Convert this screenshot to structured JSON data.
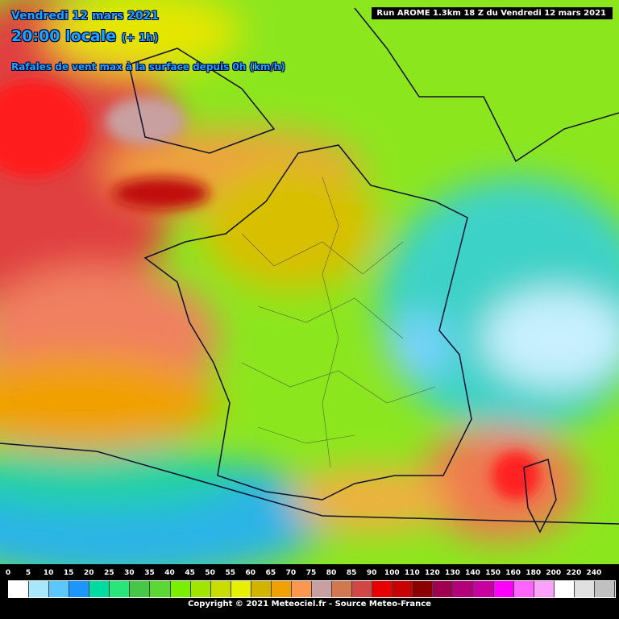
{
  "header": {
    "date": "Vendredi 12 mars 2021",
    "time": "20:00 locale",
    "offset": "(+ 1h)",
    "parameter": "Rafales de vent max à la surface depuis 0h (km/h)"
  },
  "run": "Run AROME 1.3km 18 Z du Vendredi 12 mars 2021",
  "legend": {
    "labels": [
      0,
      5,
      10,
      15,
      20,
      25,
      30,
      35,
      40,
      45,
      50,
      55,
      60,
      65,
      70,
      75,
      80,
      85,
      90,
      100,
      110,
      120,
      130,
      140,
      150,
      160,
      180,
      200,
      220,
      240
    ],
    "colors": [
      "#ffffff",
      "#a8e8ff",
      "#5ac8ff",
      "#1e96ff",
      "#00dca0",
      "#28e67a",
      "#46c846",
      "#5ad732",
      "#78f000",
      "#a0e600",
      "#c8dc00",
      "#e6f000",
      "#d2b400",
      "#f0a000",
      "#ff9650",
      "#c8a0a0",
      "#d27850",
      "#d24646",
      "#e60000",
      "#c80000",
      "#8c0000",
      "#a00050",
      "#b40078",
      "#c800a0",
      "#ff00ff",
      "#ff64ff",
      "#ffa0ff",
      "#ffffff",
      "#e0e0e0",
      "#c0c0c0"
    ]
  },
  "copyright": "Copyright © 2021 Meteociel.fr - Source Meteo-France"
}
